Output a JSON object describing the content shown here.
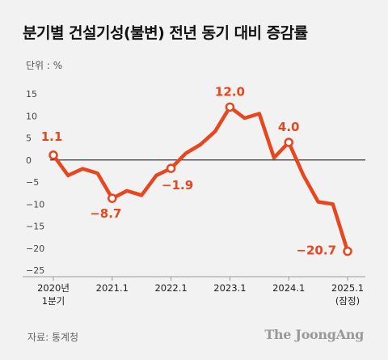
{
  "title": "분기별 건설기성(불변) 전년 동기 대비 증감률",
  "unit_label": "단위 : %",
  "source": "자료: 통계청",
  "logo": "The JoongAng",
  "colors": {
    "line": "#e8461f",
    "background": "#f2f2f2",
    "zero_line": "#333333"
  },
  "chart_data": {
    "type": "line",
    "title": "분기별 건설기성(불변) 전년 동기 대비 증감률",
    "ylabel": "단위 : %",
    "ylim": [
      -25,
      15
    ],
    "yticks": [
      15,
      10,
      5,
      0,
      -5,
      -10,
      -15,
      -20,
      -25
    ],
    "grid": false,
    "x": [
      "2020Q1",
      "2020Q2",
      "2020Q3",
      "2020Q4",
      "2021Q1",
      "2021Q2",
      "2021Q3",
      "2021Q4",
      "2022Q1",
      "2022Q2",
      "2022Q3",
      "2022Q4",
      "2023Q1",
      "2023Q2",
      "2023Q3",
      "2023Q4",
      "2024Q1",
      "2024Q2",
      "2024Q3",
      "2024Q4",
      "2025Q1"
    ],
    "values": [
      1.1,
      -3.5,
      -2.0,
      -3.0,
      -8.7,
      -7.0,
      -8.0,
      -3.5,
      -1.9,
      1.5,
      3.5,
      6.5,
      12.0,
      9.5,
      10.5,
      0.5,
      4.0,
      -3.5,
      -9.5,
      -10.0,
      -20.7
    ],
    "xtick_labels": [
      {
        "index": 0,
        "lines": [
          "2020년",
          "1분기"
        ]
      },
      {
        "index": 4,
        "lines": [
          "2021.1"
        ]
      },
      {
        "index": 8,
        "lines": [
          "2022.1"
        ]
      },
      {
        "index": 12,
        "lines": [
          "2023.1"
        ]
      },
      {
        "index": 16,
        "lines": [
          "2024.1"
        ]
      },
      {
        "index": 20,
        "lines": [
          "2025.1",
          "(잠정)"
        ]
      }
    ],
    "data_labels": [
      {
        "index": 0,
        "text": "1.1"
      },
      {
        "index": 4,
        "text": "-8.7"
      },
      {
        "index": 8,
        "text": "-1.9"
      },
      {
        "index": 12,
        "text": "12.0"
      },
      {
        "index": 16,
        "text": "4.0"
      },
      {
        "index": 20,
        "text": "-20.7"
      }
    ]
  }
}
